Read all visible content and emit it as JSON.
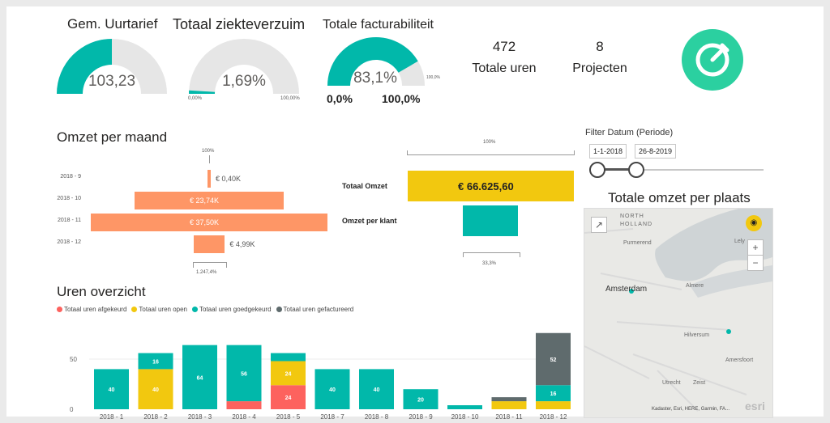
{
  "gauges": [
    {
      "title": "Gem. Uurtarief",
      "value": "103,23",
      "fraction": 0.5,
      "min": "",
      "max": ""
    },
    {
      "title": "Totaal ziekteverzuim",
      "value": "1,69%",
      "fraction": 0.0169,
      "min": "0,00%",
      "max": "100,00%"
    },
    {
      "title": "Totale facturabiliteit",
      "value": "83,1%",
      "fraction": 0.831,
      "min": "",
      "max": "100,0%",
      "below_min": "0,0%",
      "below_max": "100,0%"
    }
  ],
  "kpis": [
    {
      "value": "472",
      "label": "Totale uren"
    },
    {
      "value": "8",
      "label": "Projecten"
    }
  ],
  "omzet_per_maand": {
    "title": "Omzet per maand",
    "top_label": "100%",
    "bottom_label": "1.247,4%",
    "rows": [
      {
        "cat": "2018 - 9",
        "label": "€ 0,40K",
        "value": 0.4
      },
      {
        "cat": "2018 - 10",
        "label": "€ 23,74K",
        "value": 23.74
      },
      {
        "cat": "2018 - 11",
        "label": "€ 37,50K",
        "value": 37.5
      },
      {
        "cat": "2018 - 12",
        "label": "€ 4,99K",
        "value": 4.99
      }
    ]
  },
  "funnel2": {
    "top_label": "100%",
    "bottom_label": "33,3%",
    "rows": [
      {
        "cat": "Totaal Omzet",
        "label": "€ 66.625,60",
        "value": 100
      },
      {
        "cat": "Omzet per klant",
        "label": "",
        "value": 33.3
      }
    ]
  },
  "filter": {
    "title": "Filter Datum (Periode)",
    "start": "1-1-2018",
    "end": "26-8-2019"
  },
  "map": {
    "title": "Totale omzet per plaats",
    "labels": [
      "NORTH",
      "HOLLAND",
      "Purmerend",
      "Lely",
      "Amsterdam",
      "Almere",
      "Hilversum",
      "Amersfoort",
      "Utrecht",
      "Zeist"
    ],
    "attribution": "Kadaster, Esri, HERE, Garmin, FA...",
    "logo": "esri"
  },
  "uren": {
    "title": "Uren overzicht",
    "legend": [
      {
        "name": "Totaal uren afgekeurd",
        "color": "#fd625e"
      },
      {
        "name": "Totaal uren open",
        "color": "#f2c80f"
      },
      {
        "name": "Totaal uren goedgekeurd",
        "color": "#01b8aa"
      },
      {
        "name": "Totaal uren gefactureerd",
        "color": "#5f6b6d"
      }
    ],
    "yticks": [
      "50",
      "0"
    ]
  },
  "chart_data": {
    "type": "bar",
    "stacked": true,
    "categories": [
      "2018 - 1",
      "2018 - 2",
      "2018 - 3",
      "2018 - 4",
      "2018 - 5",
      "2018 - 7",
      "2018 - 8",
      "2018 - 9",
      "2018 - 10",
      "2018 - 11",
      "2018 - 12"
    ],
    "series": [
      {
        "name": "Totaal uren afgekeurd",
        "color": "#fd625e",
        "values": [
          0,
          0,
          0,
          8,
          24,
          0,
          0,
          0,
          0,
          0,
          0
        ],
        "labels": [
          "",
          "",
          "",
          "",
          "24",
          "",
          "",
          "",
          "",
          "",
          ""
        ]
      },
      {
        "name": "Totaal uren open",
        "color": "#f2c80f",
        "values": [
          0,
          40,
          0,
          0,
          24,
          0,
          0,
          0,
          0,
          8,
          8
        ],
        "labels": [
          "",
          "40",
          "",
          "",
          "24",
          "",
          "",
          "",
          "",
          "",
          ""
        ]
      },
      {
        "name": "Totaal uren goedgekeurd",
        "color": "#01b8aa",
        "values": [
          40,
          16,
          64,
          56,
          8,
          40,
          40,
          20,
          4,
          0,
          16
        ],
        "labels": [
          "40",
          "16",
          "64",
          "56",
          "",
          "40",
          "40",
          "20",
          "",
          "",
          "16"
        ]
      },
      {
        "name": "Totaal uren gefactureerd",
        "color": "#5f6b6d",
        "values": [
          0,
          0,
          0,
          0,
          0,
          0,
          0,
          0,
          0,
          4,
          52
        ],
        "labels": [
          "",
          "",
          "",
          "",
          "",
          "",
          "",
          "",
          "",
          "",
          "52"
        ]
      }
    ],
    "yticks": [
      0,
      50
    ],
    "ylim": [
      0,
      80
    ]
  }
}
